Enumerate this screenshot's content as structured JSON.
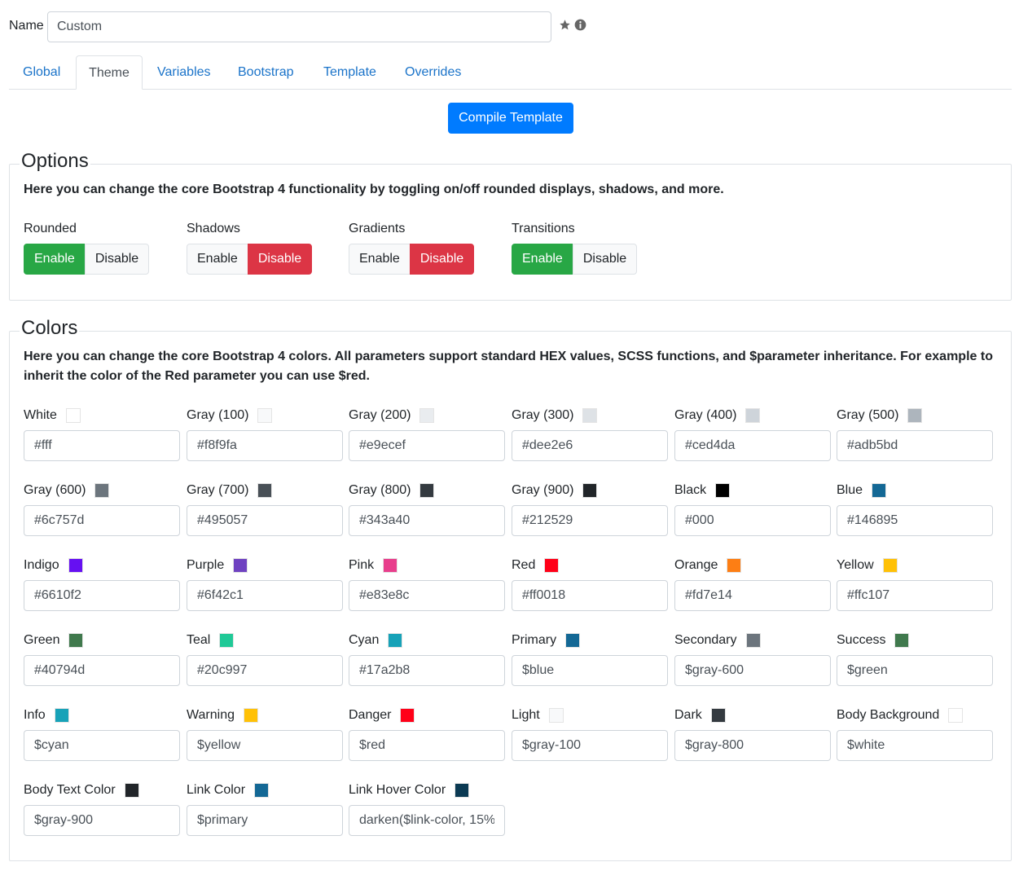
{
  "name": {
    "label": "Name",
    "value": "Custom",
    "star_icon": "star-icon",
    "info_icon": "info-icon"
  },
  "tabs": [
    {
      "label": "Global",
      "active": false
    },
    {
      "label": "Theme",
      "active": true
    },
    {
      "label": "Variables",
      "active": false
    },
    {
      "label": "Bootstrap",
      "active": false
    },
    {
      "label": "Template",
      "active": false
    },
    {
      "label": "Overrides",
      "active": false
    }
  ],
  "compile_button": "Compile Template",
  "options": {
    "legend": "Options",
    "description": "Here you can change the core Bootstrap 4 functionality by toggling on/off rounded displays, shadows, and more.",
    "groups": [
      {
        "title": "Rounded",
        "enable": "Enable",
        "disable": "Disable",
        "selected": "enable"
      },
      {
        "title": "Shadows",
        "enable": "Enable",
        "disable": "Disable",
        "selected": "disable"
      },
      {
        "title": "Gradients",
        "enable": "Enable",
        "disable": "Disable",
        "selected": "disable"
      },
      {
        "title": "Transitions",
        "enable": "Enable",
        "disable": "Disable",
        "selected": "enable"
      }
    ]
  },
  "colors": {
    "legend": "Colors",
    "description_line1": "Here you can change the core Bootstrap 4 colors. All parameters support standard HEX values, SCSS functions, and $parameter inheritance. For example to",
    "description_line2": "inherit the color of the Red parameter you can use $red.",
    "items": [
      {
        "label": "White",
        "swatch": "#ffffff",
        "value": "#fff"
      },
      {
        "label": "Gray (100)",
        "swatch": "#f8f9fa",
        "value": "#f8f9fa"
      },
      {
        "label": "Gray (200)",
        "swatch": "#e9ecef",
        "value": "#e9ecef"
      },
      {
        "label": "Gray (300)",
        "swatch": "#dee2e6",
        "value": "#dee2e6"
      },
      {
        "label": "Gray (400)",
        "swatch": "#ced4da",
        "value": "#ced4da"
      },
      {
        "label": "Gray (500)",
        "swatch": "#adb5bd",
        "value": "#adb5bd"
      },
      {
        "label": "Gray (600)",
        "swatch": "#6c757d",
        "value": "#6c757d"
      },
      {
        "label": "Gray (700)",
        "swatch": "#495057",
        "value": "#495057"
      },
      {
        "label": "Gray (800)",
        "swatch": "#343a40",
        "value": "#343a40"
      },
      {
        "label": "Gray (900)",
        "swatch": "#212529",
        "value": "#212529"
      },
      {
        "label": "Black",
        "swatch": "#000000",
        "value": "#000"
      },
      {
        "label": "Blue",
        "swatch": "#146895",
        "value": "#146895"
      },
      {
        "label": "Indigo",
        "swatch": "#6610f2",
        "value": "#6610f2"
      },
      {
        "label": "Purple",
        "swatch": "#6f42c1",
        "value": "#6f42c1"
      },
      {
        "label": "Pink",
        "swatch": "#e83e8c",
        "value": "#e83e8c"
      },
      {
        "label": "Red",
        "swatch": "#ff0018",
        "value": "#ff0018"
      },
      {
        "label": "Orange",
        "swatch": "#fd7e14",
        "value": "#fd7e14"
      },
      {
        "label": "Yellow",
        "swatch": "#ffc107",
        "value": "#ffc107"
      },
      {
        "label": "Green",
        "swatch": "#40794d",
        "value": "#40794d"
      },
      {
        "label": "Teal",
        "swatch": "#20c997",
        "value": "#20c997"
      },
      {
        "label": "Cyan",
        "swatch": "#17a2b8",
        "value": "#17a2b8"
      },
      {
        "label": "Primary",
        "swatch": "#146895",
        "value": "$blue"
      },
      {
        "label": "Secondary",
        "swatch": "#6c757d",
        "value": "$gray-600"
      },
      {
        "label": "Success",
        "swatch": "#40794d",
        "value": "$green"
      },
      {
        "label": "Info",
        "swatch": "#17a2b8",
        "value": "$cyan"
      },
      {
        "label": "Warning",
        "swatch": "#ffc107",
        "value": "$yellow"
      },
      {
        "label": "Danger",
        "swatch": "#ff0018",
        "value": "$red"
      },
      {
        "label": "Light",
        "swatch": "#f8f9fa",
        "value": "$gray-100"
      },
      {
        "label": "Dark",
        "swatch": "#343a40",
        "value": "$gray-800"
      },
      {
        "label": "Body Background",
        "swatch": "#ffffff",
        "value": "$white"
      },
      {
        "label": "Body Text Color",
        "swatch": "#212529",
        "value": "$gray-900"
      },
      {
        "label": "Link Color",
        "swatch": "#146895",
        "value": "$primary"
      },
      {
        "label": "Link Hover Color",
        "swatch": "#0b3a53",
        "value": "darken($link-color, 15%"
      }
    ]
  },
  "accent_colors": {
    "primary": "#007bff",
    "success": "#28a745",
    "danger": "#dc3545",
    "link": "#1a73c9"
  }
}
